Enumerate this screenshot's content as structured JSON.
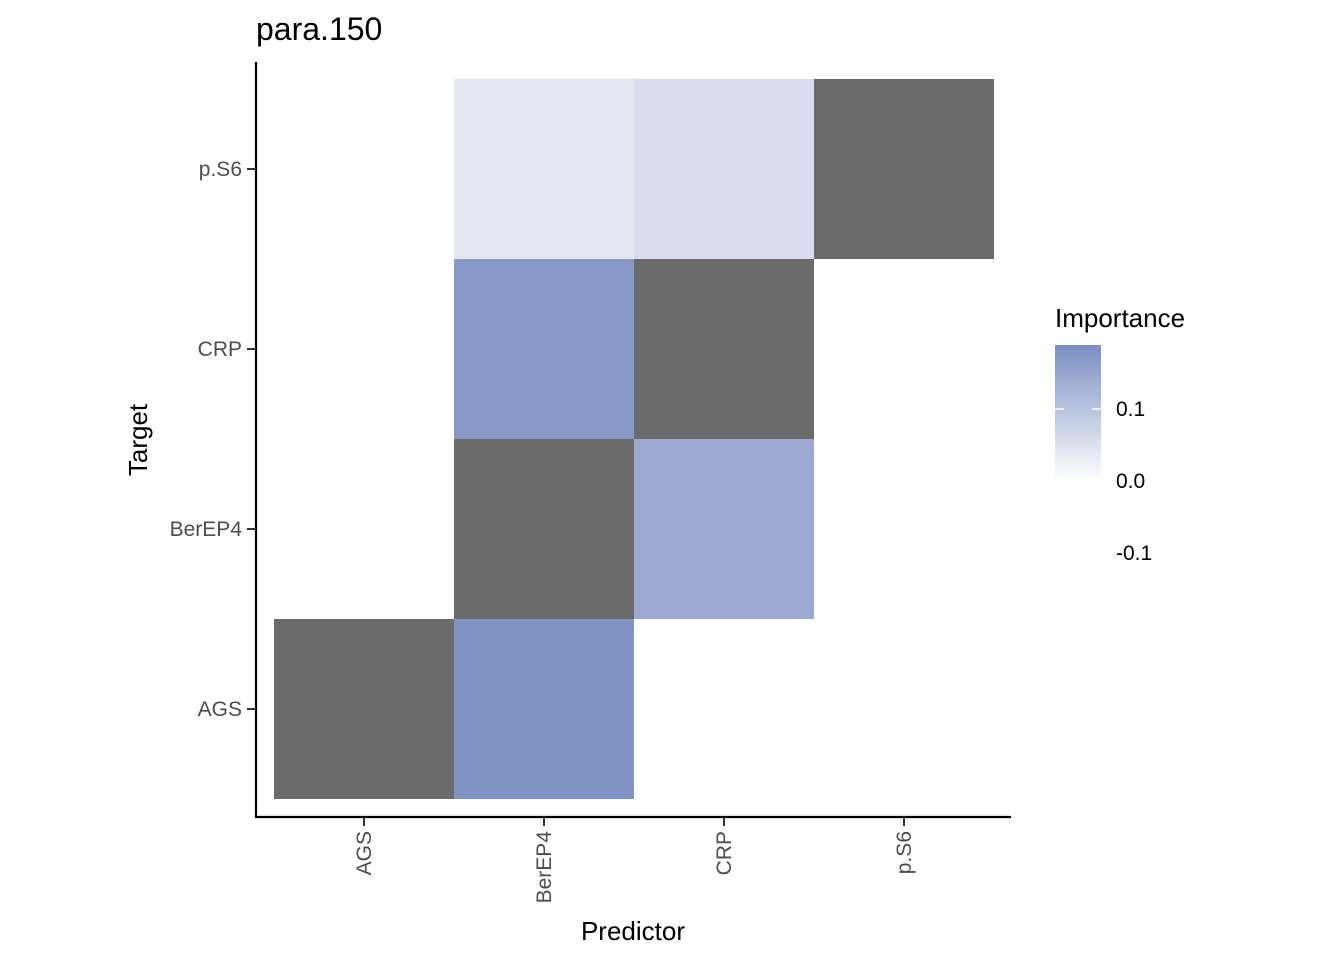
{
  "chart_data": {
    "type": "heatmap",
    "title": "para.150",
    "xlabel": "Predictor",
    "ylabel": "Target",
    "x_categories": [
      "AGS",
      "BerEP4",
      "CRP",
      "p.S6"
    ],
    "y_categories": [
      "AGS",
      "BerEP4",
      "CRP",
      "p.S6"
    ],
    "cells": [
      {
        "x": "AGS",
        "y": "AGS",
        "value": null
      },
      {
        "x": "BerEP4",
        "y": "AGS",
        "value": 0.19
      },
      {
        "x": "BerEP4",
        "y": "BerEP4",
        "value": null
      },
      {
        "x": "CRP",
        "y": "BerEP4",
        "value": 0.15
      },
      {
        "x": "BerEP4",
        "y": "CRP",
        "value": 0.18
      },
      {
        "x": "CRP",
        "y": "CRP",
        "value": null
      },
      {
        "x": "BerEP4",
        "y": "p.S6",
        "value": 0.04
      },
      {
        "x": "CRP",
        "y": "p.S6",
        "value": 0.06
      },
      {
        "x": "p.S6",
        "y": "p.S6",
        "value": null
      }
    ],
    "na_color": "#6b6b6b",
    "legend": {
      "title": "Importance",
      "position": "right",
      "ticks": [
        0.1,
        0.0,
        -0.1
      ],
      "tick_labels": [
        "0.1",
        "0.0",
        "-0.1"
      ],
      "range": [
        0.0,
        0.2
      ],
      "low_color": "#ffffff",
      "high_color": "#7b8ec2"
    },
    "grid": false
  }
}
